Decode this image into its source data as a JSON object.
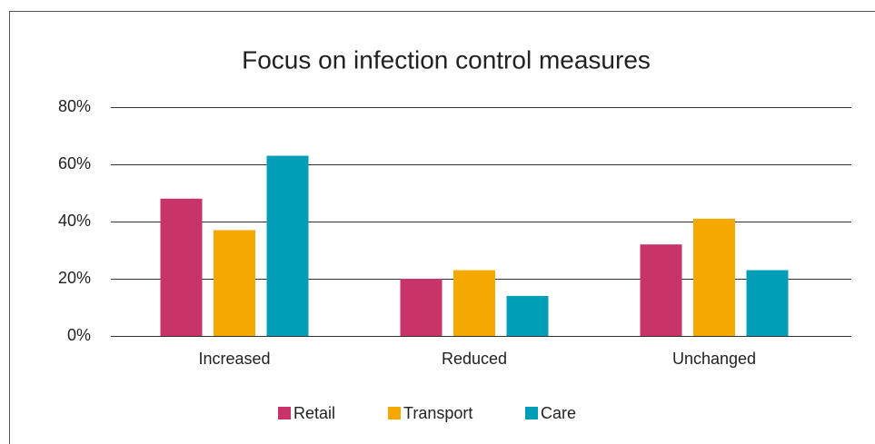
{
  "chart_data": {
    "type": "bar",
    "title": "Focus on infection control measures",
    "categories": [
      "Increased",
      "Reduced",
      "Unchanged"
    ],
    "series": [
      {
        "name": "Retail",
        "color": "#c8336a",
        "values": [
          48,
          20,
          32
        ]
      },
      {
        "name": "Transport",
        "color": "#f5a800",
        "values": [
          37,
          23,
          41
        ]
      },
      {
        "name": "Care",
        "color": "#009fb7",
        "values": [
          63,
          14,
          23
        ]
      }
    ],
    "ylim": [
      0,
      80
    ],
    "yticks": [
      {
        "value": 0,
        "label": "0%"
      },
      {
        "value": 20,
        "label": "20%"
      },
      {
        "value": 40,
        "label": "40%"
      },
      {
        "value": 60,
        "label": "60%"
      },
      {
        "value": 80,
        "label": "80%"
      }
    ],
    "grid": true,
    "legend": "bottom"
  }
}
